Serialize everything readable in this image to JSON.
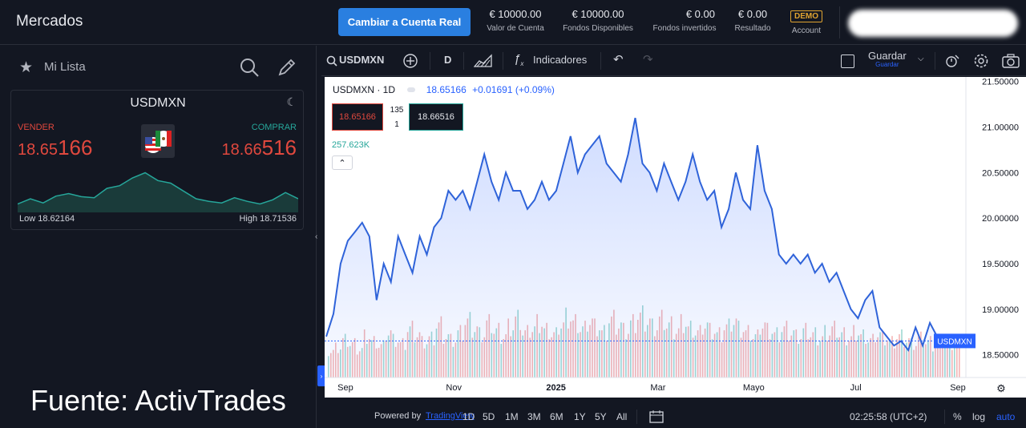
{
  "header": {
    "title": "Mercados",
    "cta_label": "Cambiar a Cuenta Real",
    "stats": [
      {
        "value": "€ 10000.00",
        "label": "Valor de Cuenta"
      },
      {
        "value": "€ 10000.00",
        "label": "Fondos Disponibles"
      },
      {
        "value": "€ 0.00",
        "label": "Fondos invertidos"
      },
      {
        "value": "€ 0.00",
        "label": "Resultado"
      }
    ],
    "account_badge": "DEMO",
    "account_label": "Account"
  },
  "watchlist": {
    "title": "Mi Lista",
    "card": {
      "symbol": "USDMXN",
      "sell_label": "VENDER",
      "buy_label": "COMPRAR",
      "sell_prefix": "18.65",
      "sell_big": "166",
      "buy_prefix": "18.66",
      "buy_big": "516",
      "low_label": "Low 18.62164",
      "high_label": "High 18.71536",
      "spark_values": [
        18.64,
        18.65,
        18.642,
        18.655,
        18.66,
        18.654,
        18.652,
        18.67,
        18.675,
        18.69,
        18.7,
        18.685,
        18.68,
        18.665,
        18.65,
        18.645,
        18.642,
        18.652,
        18.645,
        18.64,
        18.648,
        18.662,
        18.65
      ]
    }
  },
  "watermark": "Fuente: ActivTrades",
  "toolbar": {
    "symbol": "USDMXN",
    "interval": "D",
    "indicators_label": "Indicadores",
    "save_label": "Guardar",
    "save_sub": "Guardar"
  },
  "chart_legend": {
    "symbol": "USDMXN · 1D",
    "price": "18.65166",
    "change": "+0.01691 (+0.09%)",
    "bid": "18.65166",
    "ask": "18.66516",
    "spread_top": "135",
    "spread_bottom": "1",
    "volume": "257.623K",
    "price_tag": "USDMXN"
  },
  "chart_data": {
    "type": "area",
    "series": [
      {
        "name": "USDMXN",
        "values": [
          18.7,
          18.95,
          19.5,
          19.75,
          19.85,
          19.95,
          19.8,
          19.1,
          19.5,
          19.3,
          19.8,
          19.6,
          19.4,
          19.8,
          19.6,
          19.9,
          20.0,
          20.3,
          20.2,
          20.3,
          20.1,
          20.4,
          20.7,
          20.4,
          20.2,
          20.5,
          20.3,
          20.3,
          20.1,
          20.2,
          20.4,
          20.2,
          20.3,
          20.6,
          20.9,
          20.5,
          20.7,
          20.8,
          20.9,
          20.6,
          20.5,
          20.4,
          20.7,
          21.1,
          20.6,
          20.5,
          20.3,
          20.6,
          20.4,
          20.2,
          20.4,
          20.7,
          20.4,
          20.2,
          20.3,
          19.9,
          20.1,
          20.5,
          20.2,
          20.1,
          20.8,
          20.3,
          20.1,
          19.6,
          19.5,
          19.6,
          19.5,
          19.6,
          19.4,
          19.5,
          19.3,
          19.4,
          19.2,
          19.0,
          18.9,
          19.1,
          19.2,
          18.8,
          18.7,
          18.6,
          18.65,
          18.55,
          18.8,
          18.6,
          18.85,
          18.7,
          18.6,
          18.65
        ]
      }
    ],
    "x_ticks": [
      "Sep",
      "Nov",
      "2025",
      "Mar",
      "Mayo",
      "Jul",
      "Sep"
    ],
    "y_ticks": [
      "21.50000",
      "21.00000",
      "20.50000",
      "20.00000",
      "19.50000",
      "19.00000",
      "18.50000"
    ],
    "ylim": [
      18.25,
      21.55
    ],
    "volume_values": [
      28,
      32,
      40,
      36,
      30,
      44,
      38,
      34,
      48,
      40,
      36,
      52,
      46,
      38,
      42,
      56,
      44,
      40,
      48,
      60,
      52,
      46,
      58,
      50,
      44,
      54,
      62,
      48,
      52,
      58,
      50,
      46,
      56,
      64,
      58,
      52,
      60,
      54,
      48,
      62,
      56,
      50,
      58,
      66,
      60,
      54,
      62,
      56,
      50,
      58,
      52,
      48,
      56,
      50,
      46,
      54,
      60,
      52,
      48,
      44,
      56,
      50,
      46,
      52,
      48,
      44,
      50,
      46,
      42,
      48,
      52,
      46,
      42,
      48,
      44,
      40,
      46,
      42,
      38,
      44,
      40,
      36,
      42,
      38,
      34,
      40,
      36,
      40
    ],
    "grid": false
  },
  "bottombar": {
    "powered": "Powered by",
    "brand": "TradingView",
    "ranges": [
      "1D",
      "5D",
      "1M",
      "3M",
      "6M",
      "1Y",
      "5Y",
      "All"
    ],
    "clock": "02:25:58 (UTC+2)",
    "pct": "%",
    "log": "log",
    "auto": "auto"
  },
  "colors": {
    "accent": "#2962ff",
    "sell": "#e0483e",
    "buy": "#26a69a",
    "line": "#2f63d9"
  }
}
